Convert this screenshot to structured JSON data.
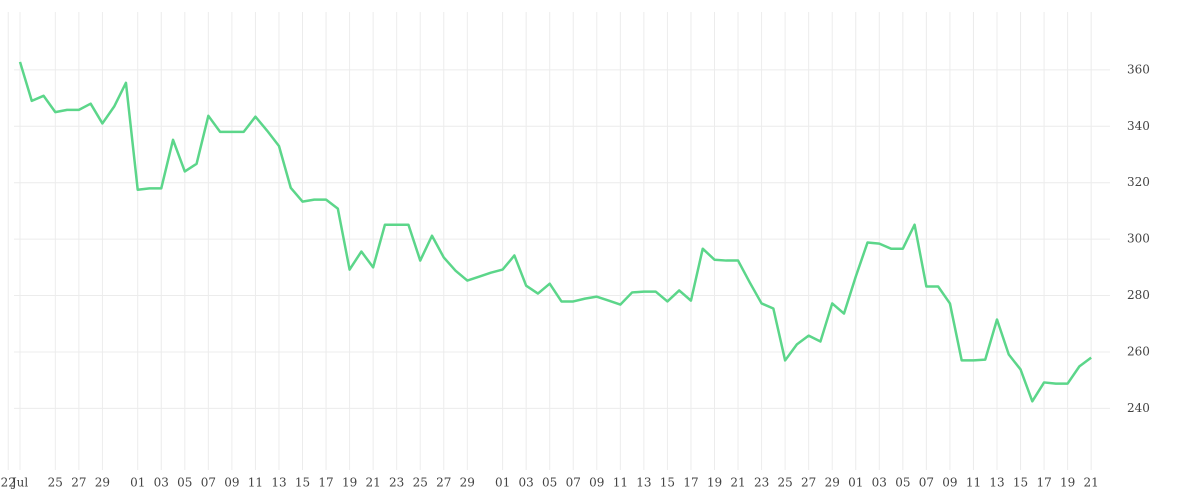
{
  "chart_data": {
    "type": "line",
    "x": [
      0,
      1,
      2,
      3,
      4,
      5,
      6,
      7,
      8,
      9,
      10,
      11,
      12,
      13,
      14,
      15,
      16,
      17,
      18,
      19,
      20,
      21,
      22,
      23,
      24,
      25,
      26,
      27,
      28,
      29,
      30,
      31,
      32,
      33,
      34,
      35,
      36,
      37,
      38,
      39,
      40,
      41,
      42,
      43,
      44,
      45,
      46,
      47,
      48,
      49,
      50,
      51,
      52,
      53,
      54,
      55,
      56,
      57,
      58,
      59,
      60,
      61,
      62,
      63,
      64,
      65,
      66,
      67,
      68,
      69,
      70,
      71,
      72,
      73,
      74,
      75,
      76,
      77,
      78,
      79,
      80,
      81,
      82,
      83,
      84,
      85,
      86,
      87,
      88,
      89,
      90,
      91
    ],
    "values": [
      362.8,
      349,
      350.8,
      345,
      345.8,
      345.8,
      348,
      341,
      347,
      355.4,
      317.5,
      318,
      318,
      335.2,
      324,
      326.7,
      343.7,
      338,
      338,
      338,
      343.4,
      338.4,
      333,
      318.2,
      313.3,
      314,
      314,
      310.8,
      289.2,
      295.6,
      290,
      305.1,
      305.1,
      305.1,
      292.4,
      301.2,
      293.5,
      288.8,
      285.3,
      286.7,
      288.1,
      289.2,
      294.2,
      283.5,
      280.7,
      284.2,
      277.9,
      277.9,
      278.9,
      279.6,
      278.2,
      276.8,
      281.1,
      281.4,
      281.4,
      277.9,
      281.8,
      278.2,
      296.6,
      292.7,
      292.4,
      292.4,
      284.6,
      277.2,
      275.4,
      257,
      262.7,
      265.8,
      263.7,
      277.2,
      273.6,
      286.7,
      298.8,
      298.4,
      296.6,
      296.6,
      305.1,
      283.2,
      283.2,
      277.2,
      257,
      257,
      257.3,
      271.5,
      259.1,
      253.8,
      242.5,
      249.2,
      248.8,
      248.8,
      254.9,
      258
    ],
    "color": "#5cd68a",
    "xlim": [
      -1.7,
      92.6
    ],
    "xticks": [
      {
        "value": -1,
        "label": "22"
      },
      {
        "value": 0,
        "label": "Jul"
      },
      {
        "value": 3,
        "label": "25"
      },
      {
        "value": 5,
        "label": "27"
      },
      {
        "value": 7,
        "label": "29"
      },
      {
        "value": 10,
        "label": "01"
      },
      {
        "value": 12,
        "label": "03"
      },
      {
        "value": 14,
        "label": "05"
      },
      {
        "value": 16,
        "label": "07"
      },
      {
        "value": 18,
        "label": "09"
      },
      {
        "value": 20,
        "label": "11"
      },
      {
        "value": 22,
        "label": "13"
      },
      {
        "value": 24,
        "label": "15"
      },
      {
        "value": 26,
        "label": "17"
      },
      {
        "value": 28,
        "label": "19"
      },
      {
        "value": 30,
        "label": "21"
      },
      {
        "value": 32,
        "label": "23"
      },
      {
        "value": 34,
        "label": "25"
      },
      {
        "value": 36,
        "label": "27"
      },
      {
        "value": 38,
        "label": "29"
      },
      {
        "value": 41,
        "label": "01"
      },
      {
        "value": 43,
        "label": "03"
      },
      {
        "value": 45,
        "label": "05"
      },
      {
        "value": 47,
        "label": "07"
      },
      {
        "value": 49,
        "label": "09"
      },
      {
        "value": 51,
        "label": "11"
      },
      {
        "value": 53,
        "label": "13"
      },
      {
        "value": 55,
        "label": "15"
      },
      {
        "value": 57,
        "label": "17"
      },
      {
        "value": 59,
        "label": "19"
      },
      {
        "value": 61,
        "label": "21"
      },
      {
        "value": 63,
        "label": "23"
      },
      {
        "value": 65,
        "label": "25"
      },
      {
        "value": 67,
        "label": "27"
      },
      {
        "value": 69,
        "label": "29"
      },
      {
        "value": 71,
        "label": "01"
      },
      {
        "value": 73,
        "label": "03"
      },
      {
        "value": 75,
        "label": "05"
      },
      {
        "value": 77,
        "label": "07"
      },
      {
        "value": 79,
        "label": "09"
      },
      {
        "value": 81,
        "label": "11"
      },
      {
        "value": 83,
        "label": "13"
      },
      {
        "value": 85,
        "label": "15"
      },
      {
        "value": 87,
        "label": "17"
      },
      {
        "value": 89,
        "label": "19"
      },
      {
        "value": 91,
        "label": "21"
      }
    ],
    "ylim": [
      221,
      380.5
    ],
    "yticks": [
      240,
      260,
      280,
      300,
      320,
      340,
      360
    ],
    "grid": true
  }
}
